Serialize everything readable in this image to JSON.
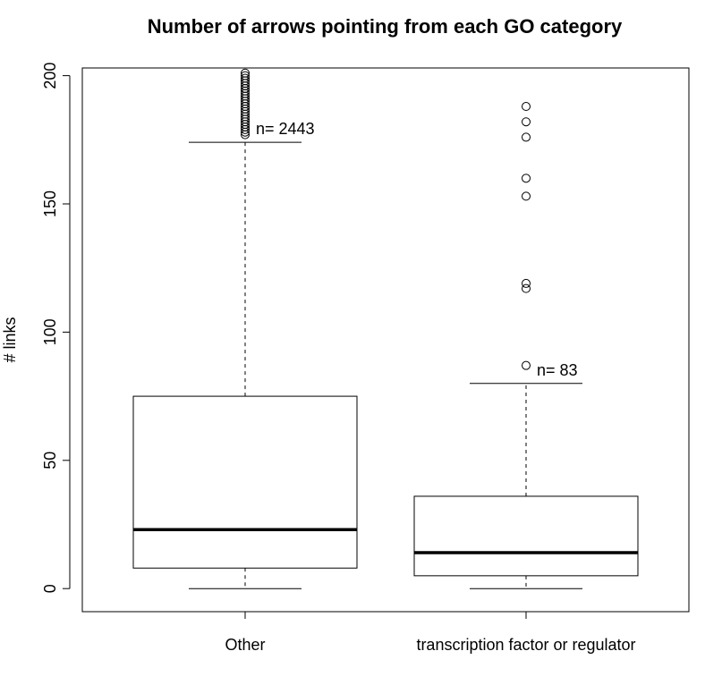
{
  "chart_data": {
    "type": "boxplot",
    "title": "Number of arrows pointing from each GO category",
    "xlabel": "",
    "ylabel": "# links",
    "ylim": [
      -9,
      203
    ],
    "yticks": [
      0,
      50,
      100,
      150,
      200
    ],
    "categories": [
      "Other",
      "transcription factor or regulator"
    ],
    "boxes": [
      {
        "category": "Other",
        "min": 0,
        "q1": 8,
        "median": 23,
        "q3": 75,
        "whisker_high": 174,
        "n_label": "n= 2443",
        "outliers": [
          177,
          178,
          179,
          180,
          181,
          182,
          183,
          184,
          185,
          186,
          187,
          188,
          189,
          190,
          191,
          192,
          193,
          194,
          195,
          196,
          197,
          198,
          199,
          200,
          201
        ]
      },
      {
        "category": "transcription factor or regulator",
        "min": 0,
        "q1": 5,
        "median": 14,
        "q3": 36,
        "whisker_high": 80,
        "n_label": "n= 83",
        "outliers": [
          87,
          117,
          119,
          153,
          160,
          176,
          182,
          188
        ]
      }
    ]
  }
}
